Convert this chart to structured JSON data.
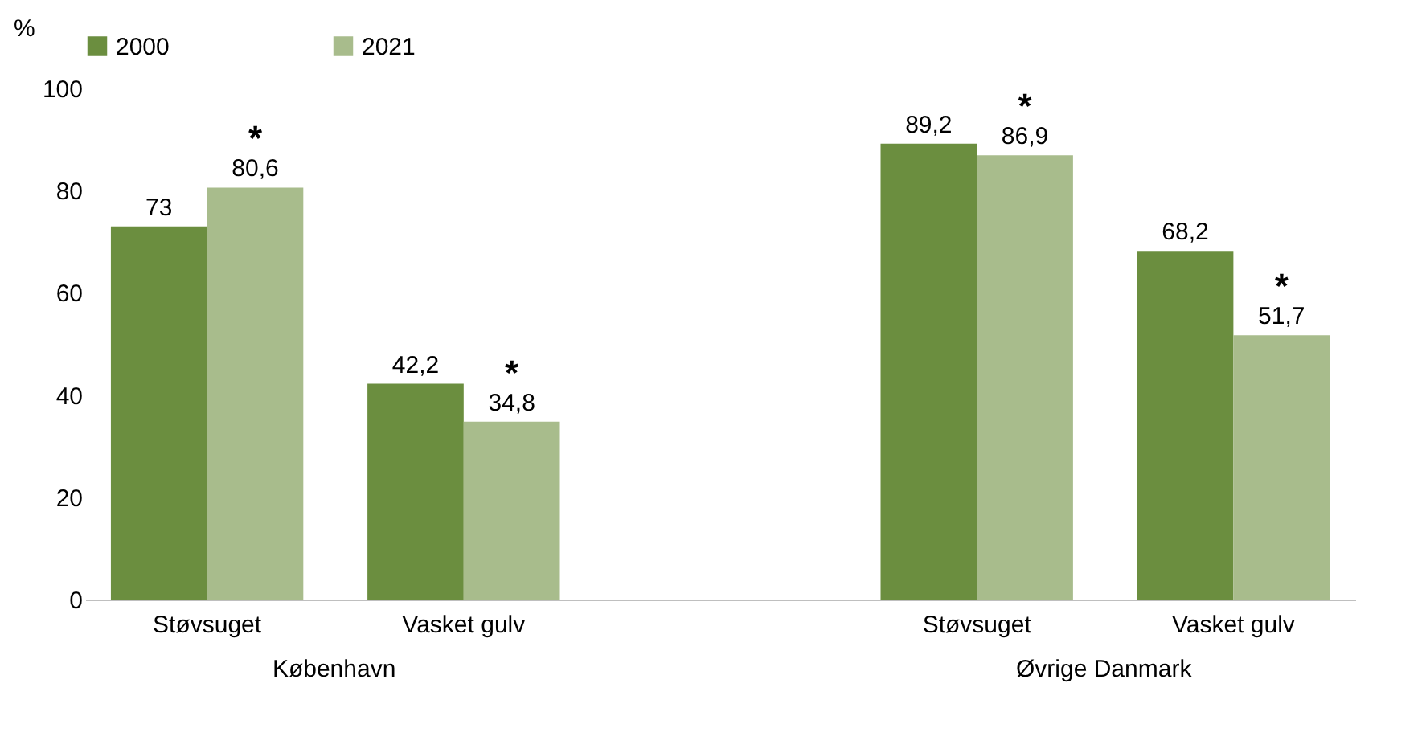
{
  "chart_data": {
    "type": "bar",
    "ylabel": "%",
    "categories": [
      "Støvsuget",
      "Vasket gulv",
      null,
      "Støvsuget",
      "Vasket gulv"
    ],
    "series": [
      {
        "name": "2000",
        "color": "#6b8e3f",
        "values": [
          73,
          42.2,
          null,
          89.2,
          68.2
        ],
        "value_labels": [
          "73",
          "42,2",
          null,
          "89,2",
          "68,2"
        ]
      },
      {
        "name": "2021",
        "color": "#a8bc8c",
        "values": [
          80.6,
          34.8,
          null,
          86.9,
          51.7
        ],
        "value_labels": [
          "80,6",
          "34,8",
          null,
          "86,9",
          "51,7"
        ]
      }
    ],
    "annotations": [
      "København",
      "Øvrige Danmark",
      "*",
      "*",
      "*",
      "*"
    ],
    "ylim": [
      0,
      100
    ],
    "yticks": [
      0,
      20,
      40,
      60,
      80,
      100
    ],
    "grid": false,
    "legend": "top"
  }
}
